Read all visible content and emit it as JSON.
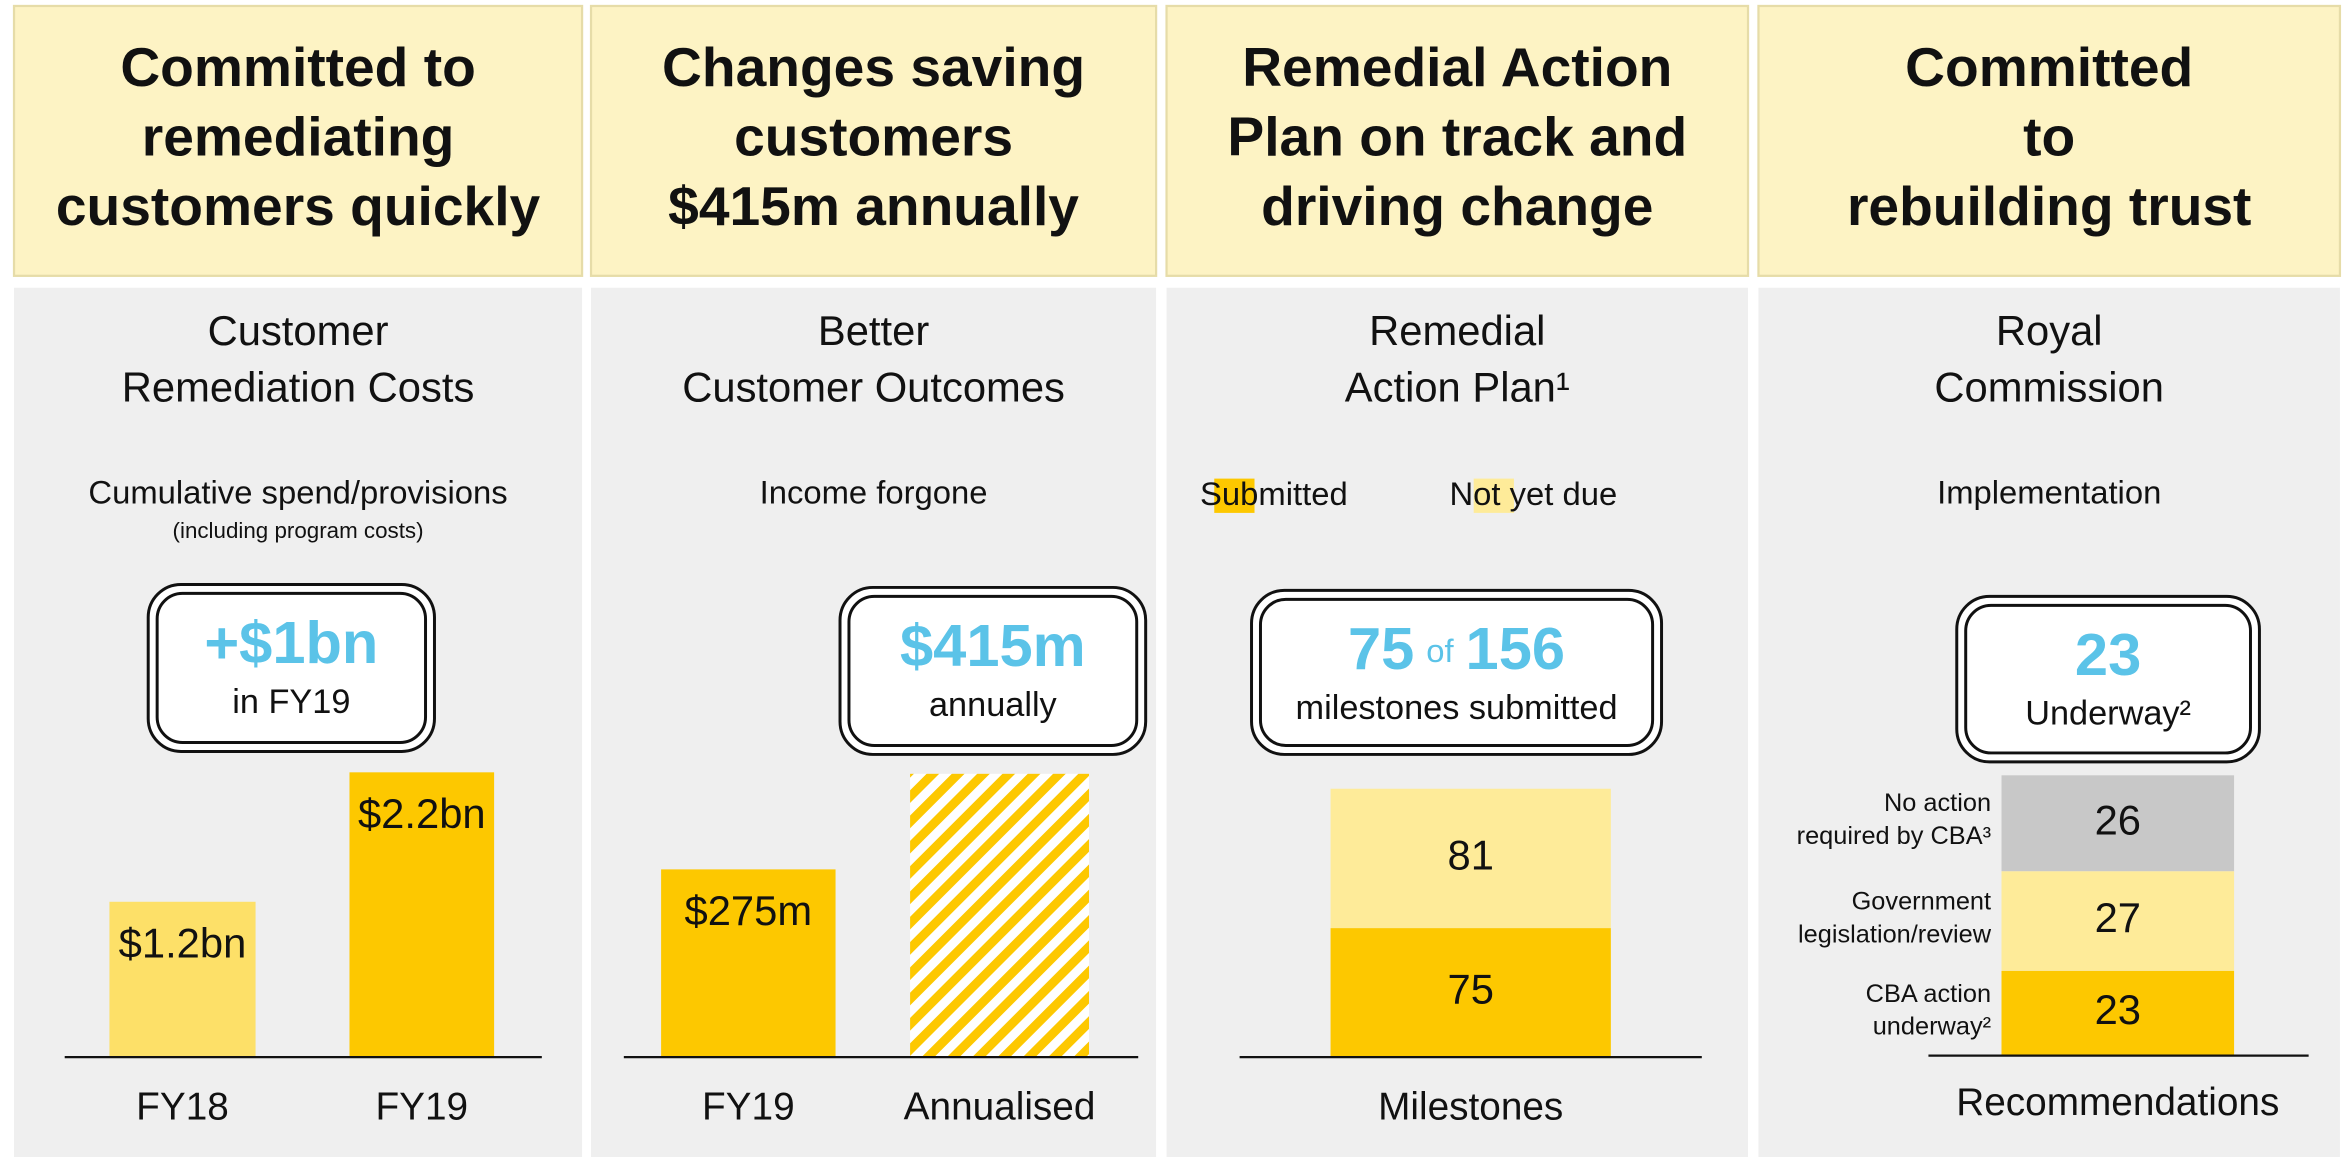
{
  "chart_data": [
    {
      "type": "bar",
      "header": [
        "Committed to",
        "remediating",
        "customers quickly"
      ],
      "title": [
        "Customer",
        "Remediation Costs"
      ],
      "subtitle": "Cumulative spend/provisions",
      "note": "(including program costs)",
      "callout": {
        "headline": "+$1bn",
        "label": "in FY19"
      },
      "categories": [
        "FY18",
        "FY19"
      ],
      "values": [
        1.2,
        2.2
      ],
      "value_labels": [
        "$1.2bn",
        "$2.2bn"
      ],
      "colors": [
        "#fde068",
        "#fdc800"
      ],
      "hatch": [
        false,
        false
      ]
    },
    {
      "type": "bar",
      "header": [
        "Changes saving",
        "customers",
        "$415m annually"
      ],
      "title": [
        "Better",
        "Customer Outcomes"
      ],
      "subtitle": "Income forgone",
      "callout": {
        "headline": "$415m",
        "label": "annually"
      },
      "categories": [
        "FY19",
        "Annualised"
      ],
      "values": [
        275,
        415
      ],
      "value_labels": [
        "$275m",
        null
      ],
      "colors": [
        "#fdc800",
        "#fdc800"
      ],
      "hatch": [
        false,
        true
      ]
    },
    {
      "type": "stacked_bar",
      "header": [
        "Remedial Action",
        "Plan on track and",
        "driving change"
      ],
      "title": [
        "Remedial",
        "Action Plan¹"
      ],
      "legend": true,
      "callout": {
        "headline": 75,
        "joiner": "of",
        "total": 156,
        "label": "milestones submitted"
      },
      "categories": [
        "Milestones"
      ],
      "series": [
        {
          "name": "Submitted",
          "color": "#fdc800",
          "values": [
            75
          ]
        },
        {
          "name": "Not yet due",
          "color": "#feeb99",
          "values": [
            81
          ]
        }
      ]
    },
    {
      "type": "stacked_bar",
      "header": [
        "Committed",
        "to",
        "rebuilding trust"
      ],
      "title": [
        "Royal",
        "Commission"
      ],
      "subtitle": "Implementation",
      "legend": false,
      "callout": {
        "headline": 23,
        "label": "Underway²"
      },
      "categories": [
        "Recommendations"
      ],
      "series": [
        {
          "name": "CBA action\nunderway²",
          "color": "#fdc800",
          "values": [
            23
          ]
        },
        {
          "name": "Government\nlegislation/review",
          "color": "#feeb99",
          "values": [
            27
          ]
        },
        {
          "name": "No action\nrequired by CBA³",
          "color": "#c8c8c8",
          "values": [
            26
          ]
        }
      ]
    }
  ]
}
